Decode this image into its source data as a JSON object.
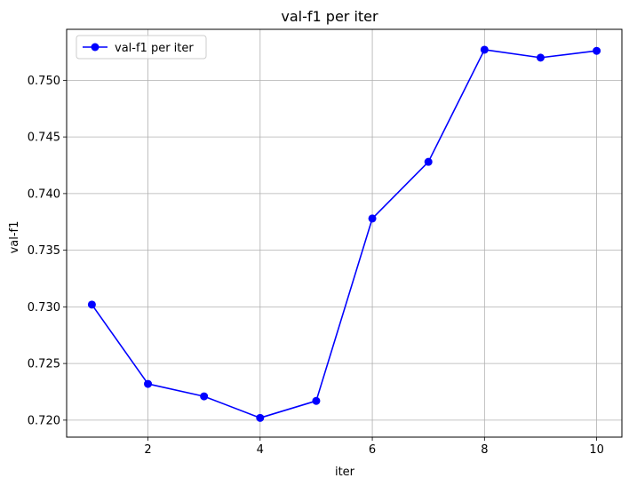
{
  "chart_data": {
    "type": "line",
    "title": "val-f1 per iter",
    "xlabel": "iter",
    "ylabel": "val-f1",
    "x": [
      1,
      2,
      3,
      4,
      5,
      6,
      7,
      8,
      9,
      10
    ],
    "series": [
      {
        "name": "val-f1 per iter",
        "color": "#0000ff",
        "marker": "circle",
        "values": [
          0.7302,
          0.7232,
          0.7221,
          0.7202,
          0.7217,
          0.7378,
          0.7428,
          0.7527,
          0.752,
          0.7526
        ]
      }
    ],
    "xlim": [
      0.55,
      10.45
    ],
    "ylim": [
      0.7185,
      0.7545
    ],
    "xticks": [
      2,
      4,
      6,
      8,
      10
    ],
    "xtick_labels": [
      "2",
      "4",
      "6",
      "8",
      "10"
    ],
    "yticks": [
      0.72,
      0.725,
      0.73,
      0.735,
      0.74,
      0.745,
      0.75
    ],
    "ytick_labels": [
      "0.720",
      "0.725",
      "0.730",
      "0.735",
      "0.740",
      "0.745",
      "0.750"
    ],
    "grid": true,
    "legend": "top-left"
  }
}
